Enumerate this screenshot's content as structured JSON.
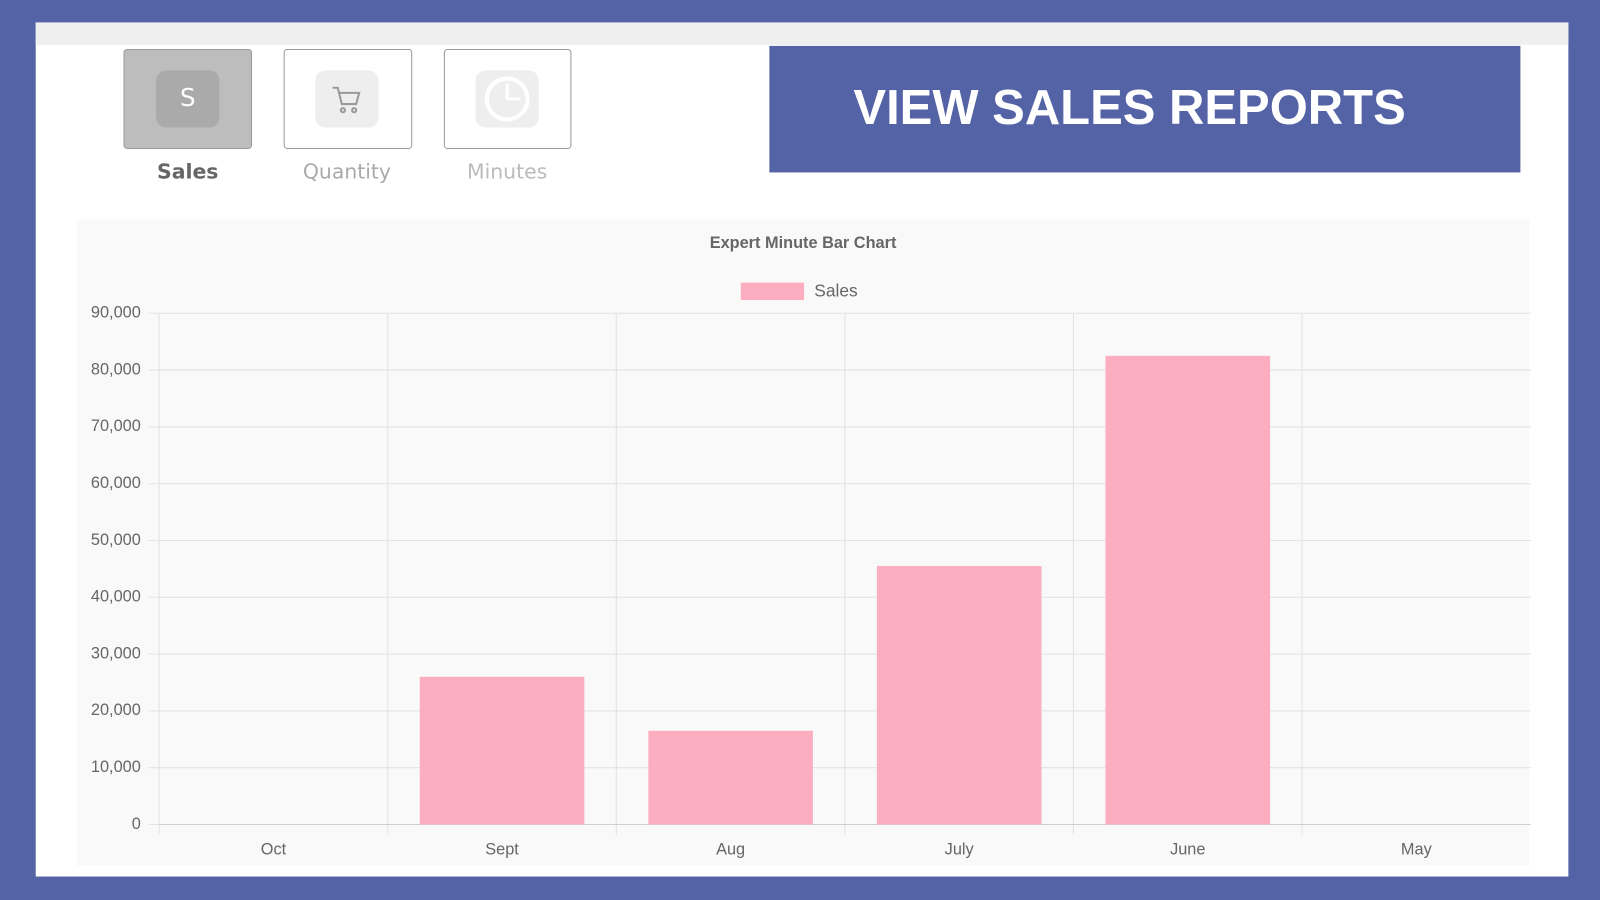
{
  "tabs": [
    {
      "icon": "S",
      "label": "Sales"
    },
    {
      "label": "Quantity"
    },
    {
      "label": "Minutes"
    }
  ],
  "banner": {
    "title": "VIEW SALES REPORTS"
  },
  "chart_data": {
    "type": "bar",
    "title": "Expert Minute Bar Chart",
    "categories": [
      "Oct",
      "Sept",
      "Aug",
      "July",
      "June",
      "May"
    ],
    "series": [
      {
        "name": "Sales",
        "color": "#fdadc0",
        "values": [
          0,
          26000,
          16500,
          45500,
          82500,
          0
        ]
      }
    ],
    "ylim": [
      0,
      90000
    ],
    "yticks": [
      0,
      {
        "value": 10000,
        "label": "10,000"
      },
      {
        "value": 20000,
        "label": "20,000"
      },
      {
        "value": 30000,
        "label": "30,000"
      },
      {
        "value": 40000,
        "label": "40,000"
      },
      {
        "value": 50000,
        "label": "50,000"
      },
      {
        "value": 60000,
        "label": "60,000"
      },
      {
        "value": 70000,
        "label": "70,000"
      },
      {
        "value": 80000,
        "label": "80,000"
      },
      {
        "value": 90000,
        "label": "90,000"
      }
    ],
    "grid": true,
    "legend": "top"
  }
}
